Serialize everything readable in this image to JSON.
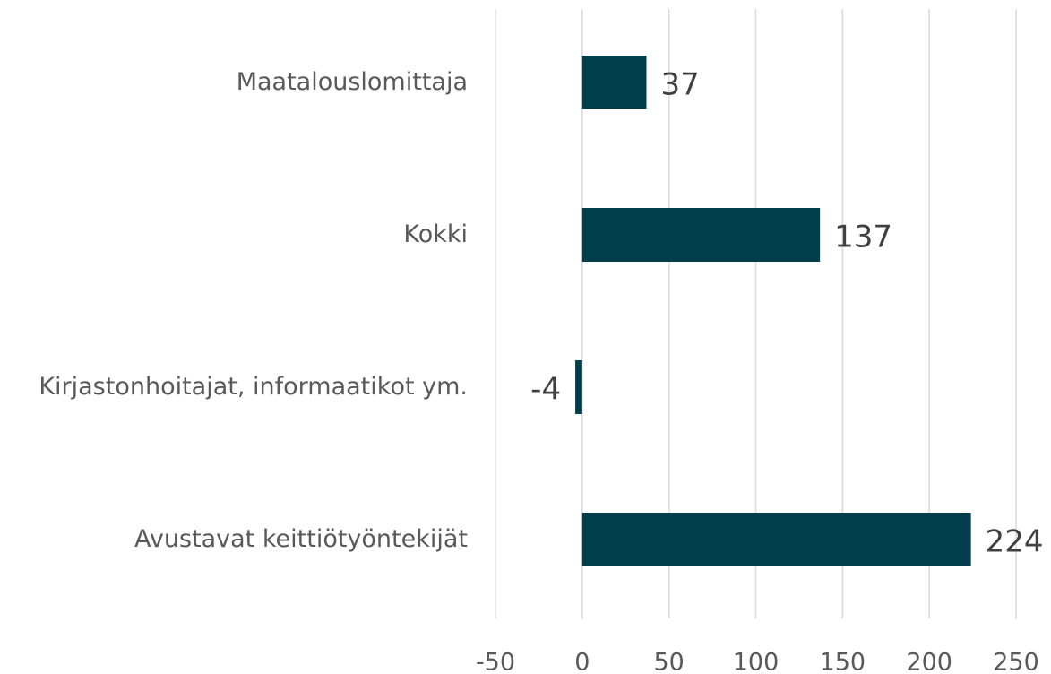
{
  "chart_data": {
    "type": "bar",
    "orientation": "horizontal",
    "categories": [
      "Maatalouslomittaja",
      "Kokki",
      "Kirjastonhoitajat, informaatikot ym.",
      "Avustavat keittiötyöntekijät"
    ],
    "values": [
      37,
      137,
      -4,
      224
    ],
    "color": "#023d4b",
    "xlim": [
      -50,
      250
    ],
    "xticks": [
      -50,
      0,
      50,
      100,
      150,
      200,
      250
    ],
    "grid": true
  }
}
